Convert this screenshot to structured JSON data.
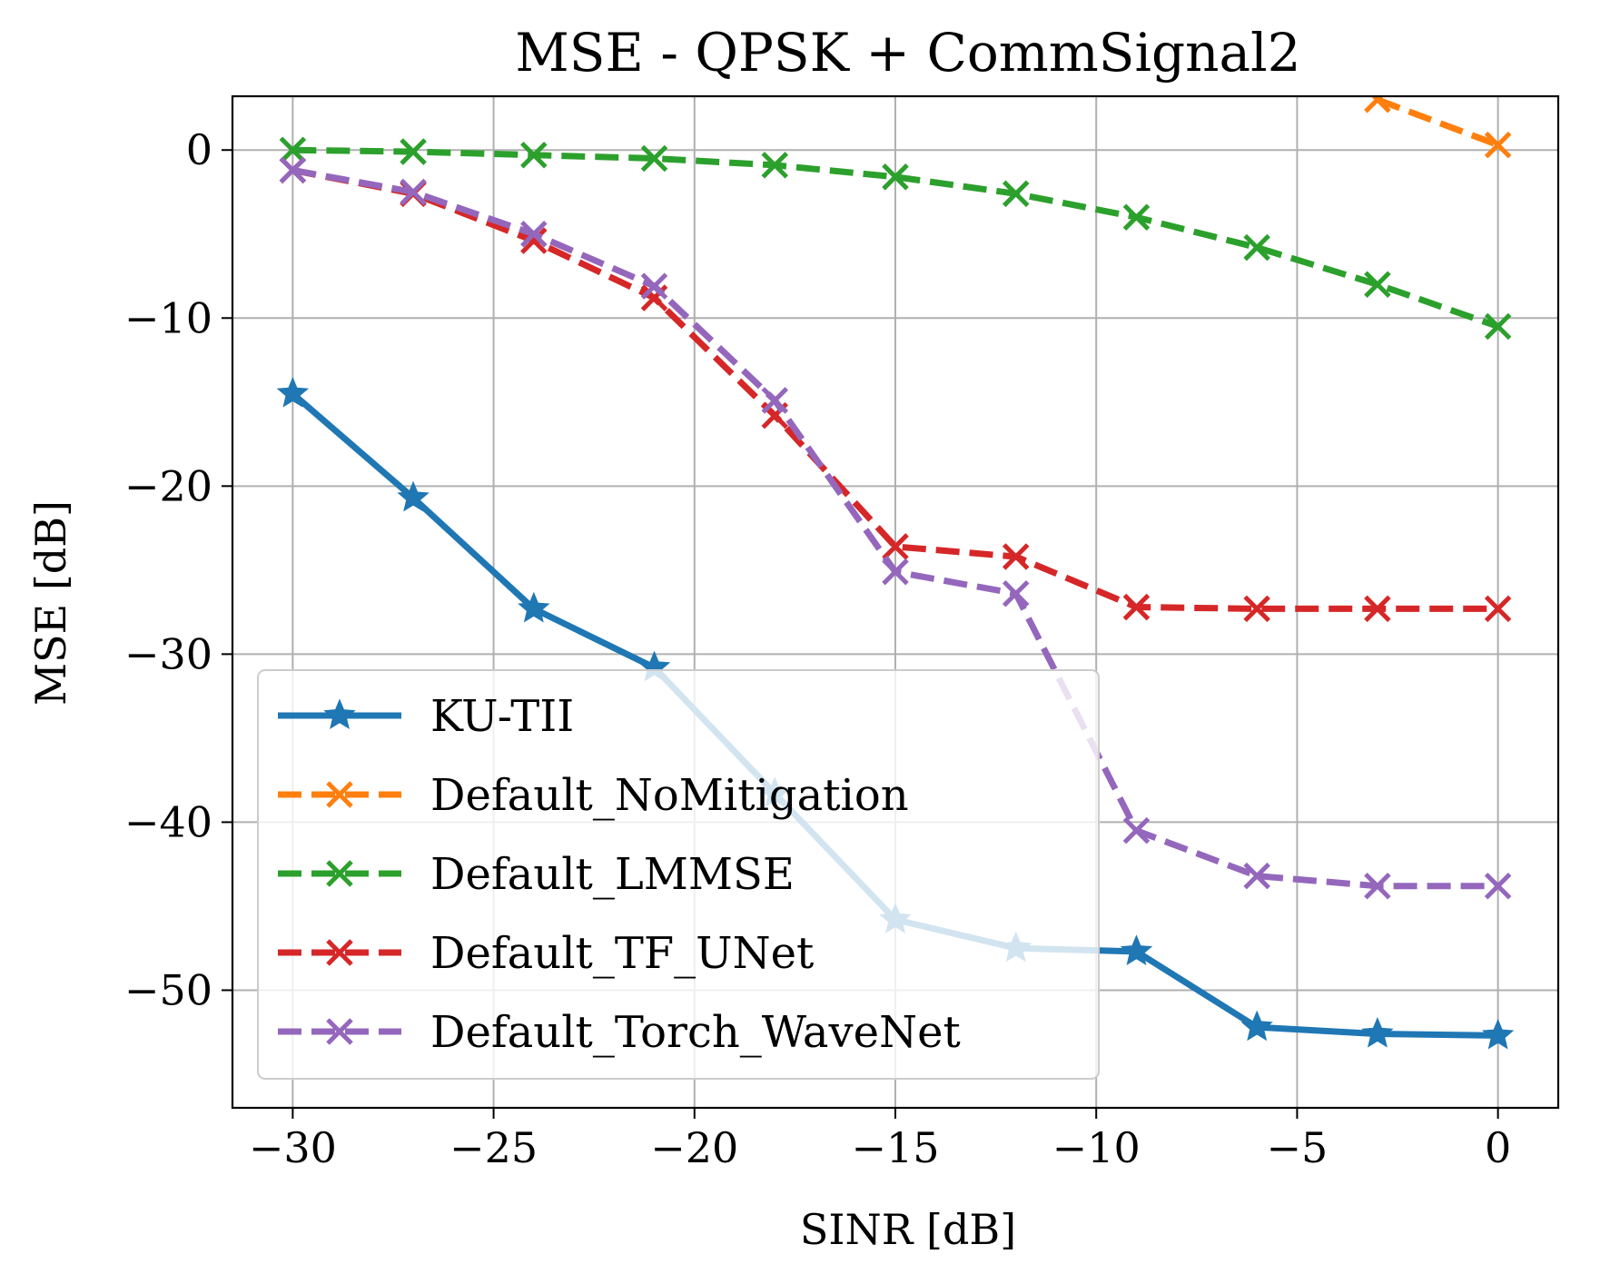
{
  "chart_data": {
    "type": "line",
    "title": "MSE - QPSK + CommSignal2",
    "xlabel": "SINR [dB]",
    "ylabel": "MSE [dB]",
    "xlim": [
      -31.5,
      1.5
    ],
    "ylim": [
      -57,
      3.2
    ],
    "xticks": [
      -30,
      -25,
      -20,
      -15,
      -10,
      -5,
      0
    ],
    "xtick_labels": [
      "−30",
      "−25",
      "−20",
      "−15",
      "−10",
      "−5",
      "0"
    ],
    "yticks": [
      0,
      -10,
      -20,
      -30,
      -40,
      -50
    ],
    "ytick_labels": [
      "0",
      "−10",
      "−20",
      "−30",
      "−40",
      "−50"
    ],
    "grid": true,
    "legend_position": "lower-left",
    "x": [
      -30,
      -27,
      -24,
      -21,
      -18,
      -15,
      -12,
      -9,
      -6,
      -3,
      0
    ],
    "series": [
      {
        "name": "KU-TII",
        "color": "#1f77b4",
        "marker": "star",
        "linestyle": "solid",
        "values": [
          -14.5,
          -20.7,
          -27.3,
          -30.8,
          -38.3,
          -45.8,
          -47.5,
          -47.7,
          -52.2,
          -52.6,
          -52.7
        ]
      },
      {
        "name": "Default_NoMitigation",
        "color": "#ff7f0e",
        "marker": "x",
        "linestyle": "dashed",
        "values": [
          null,
          null,
          null,
          null,
          null,
          null,
          null,
          null,
          null,
          3.0,
          0.3
        ]
      },
      {
        "name": "Default_LMMSE",
        "color": "#2ca02c",
        "marker": "x",
        "linestyle": "dashed",
        "values": [
          0.0,
          -0.1,
          -0.3,
          -0.5,
          -0.9,
          -1.6,
          -2.6,
          -4.0,
          -5.8,
          -8.0,
          -10.5
        ]
      },
      {
        "name": "Default_TF_UNet",
        "color": "#d62728",
        "marker": "x",
        "linestyle": "dashed",
        "values": [
          -1.2,
          -2.6,
          -5.4,
          -8.8,
          -15.8,
          -23.6,
          -24.2,
          -27.2,
          -27.3,
          -27.3,
          -27.3
        ]
      },
      {
        "name": "Default_Torch_WaveNet",
        "color": "#9467bd",
        "marker": "x",
        "linestyle": "dashed",
        "values": [
          -1.2,
          -2.5,
          -5.0,
          -8.1,
          -14.9,
          -25.1,
          -26.4,
          -40.5,
          -43.2,
          -43.8,
          -43.8
        ]
      }
    ]
  }
}
